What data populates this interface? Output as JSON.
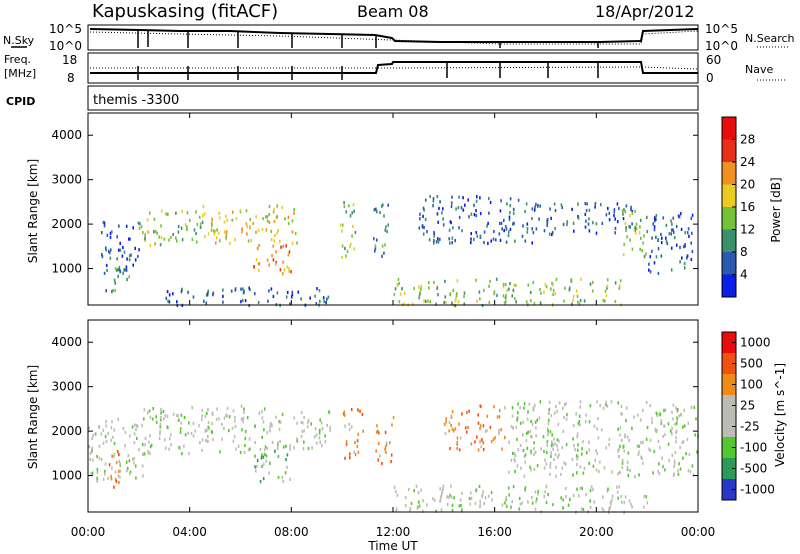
{
  "header": {
    "station": "Kapuskasing (fitACF)",
    "beam": "Beam 08",
    "date": "18/Apr/2012"
  },
  "noise_panel": {
    "left_label": "N.Sky",
    "left_ticks": [
      "10^5",
      "10^0"
    ],
    "right_ticks": [
      "10^5",
      "10^0"
    ],
    "right_label": "N.Search"
  },
  "freq_panel": {
    "left_label_1": "Freq.",
    "left_label_2": "[MHz]",
    "left_ticks": [
      "18",
      "8"
    ],
    "right_ticks": [
      "60",
      "0"
    ],
    "right_label": "Nave"
  },
  "cpid_panel": {
    "label": "CPID",
    "program": "themis -3300"
  },
  "time_axis": {
    "xlabel": "Time UT",
    "ticks": [
      "00:00",
      "04:00",
      "08:00",
      "12:00",
      "16:00",
      "20:00",
      "00:00"
    ]
  },
  "chart_data": [
    {
      "type": "heatmap",
      "title": "",
      "xlabel": "Time UT",
      "ylabel": "Slant Range [km]",
      "xlim": [
        0,
        24
      ],
      "ylim": [
        180,
        4500
      ],
      "yticks": [
        "1000",
        "2000",
        "3000",
        "4000"
      ],
      "colorbar_label": "Power [dB]",
      "colorbar_ticks": [
        "4",
        "8",
        "12",
        "16",
        "20",
        "24",
        "28"
      ],
      "colorbar_colors": [
        "#0a1ee8",
        "#2a5ab0",
        "#3a9068",
        "#74c23a",
        "#e8cc20",
        "#f09020",
        "#e83018",
        "#e80c0c"
      ],
      "regions": [
        {
          "t": [
            0.5,
            2.0
          ],
          "r": [
            900,
            2150
          ],
          "c": 1
        },
        {
          "t": [
            0.6,
            1.6
          ],
          "r": [
            500,
            1050
          ],
          "c": 2
        },
        {
          "t": [
            2.0,
            4.5
          ],
          "r": [
            1550,
            2350
          ],
          "c": 3
        },
        {
          "t": [
            4.5,
            8.2
          ],
          "r": [
            1600,
            2450
          ],
          "c": 4
        },
        {
          "t": [
            6.5,
            8.0
          ],
          "r": [
            900,
            1700
          ],
          "c": 5
        },
        {
          "t": [
            3.0,
            9.5
          ],
          "r": [
            200,
            600
          ],
          "c": 1
        },
        {
          "t": [
            9.9,
            10.5
          ],
          "r": [
            1200,
            2600
          ],
          "c": 3
        },
        {
          "t": [
            11.2,
            11.9
          ],
          "r": [
            1300,
            2500
          ],
          "c": 2
        },
        {
          "t": [
            12.0,
            21.0
          ],
          "r": [
            200,
            800
          ],
          "c": 3
        },
        {
          "t": [
            13.0,
            17.5
          ],
          "r": [
            1600,
            2700
          ],
          "c": 1
        },
        {
          "t": [
            17.5,
            21.5
          ],
          "r": [
            1800,
            2500
          ],
          "c": 1
        },
        {
          "t": [
            21.0,
            22.0
          ],
          "r": [
            1200,
            2400
          ],
          "c": 3
        },
        {
          "t": [
            22.0,
            23.8
          ],
          "r": [
            900,
            2300
          ],
          "c": 1
        }
      ]
    },
    {
      "type": "heatmap",
      "title": "",
      "xlabel": "Time UT",
      "ylabel": "Slant Range [km]",
      "xlim": [
        0,
        24
      ],
      "ylim": [
        180,
        4500
      ],
      "yticks": [
        "1000",
        "2000",
        "3000",
        "4000"
      ],
      "colorbar_label": "Velocity [m s^-1]",
      "colorbar_ticks": [
        "1000",
        "500",
        "100",
        "25",
        "-25",
        "-100",
        "-500",
        "-1000"
      ],
      "colorbar_colors": [
        "#2838c8",
        "#2e9a58",
        "#52c82e",
        "#bcbcb4",
        "#bcbcb4",
        "#f08a18",
        "#f05010",
        "#e80c0c"
      ],
      "regions": [
        {
          "t": [
            0.0,
            2.2
          ],
          "r": [
            900,
            2300
          ],
          "c": 3
        },
        {
          "t": [
            0.8,
            1.4
          ],
          "r": [
            700,
            1600
          ],
          "c": 5
        },
        {
          "t": [
            2.0,
            7.0
          ],
          "r": [
            1500,
            2600
          ],
          "c": 3
        },
        {
          "t": [
            6.5,
            8.0
          ],
          "r": [
            900,
            1700
          ],
          "c": 2
        },
        {
          "t": [
            7.0,
            9.5
          ],
          "r": [
            1600,
            2500
          ],
          "c": 3
        },
        {
          "t": [
            10.0,
            10.8
          ],
          "r": [
            1400,
            2600
          ],
          "c": 5
        },
        {
          "t": [
            11.3,
            12.0
          ],
          "r": [
            1300,
            2400
          ],
          "c": 5
        },
        {
          "t": [
            12.0,
            22.0
          ],
          "r": [
            200,
            800
          ],
          "c": 3
        },
        {
          "t": [
            14.0,
            16.5
          ],
          "r": [
            1600,
            2600
          ],
          "c": 5
        },
        {
          "t": [
            16.5,
            24.0
          ],
          "r": [
            1000,
            2700
          ],
          "c": 3
        }
      ]
    }
  ]
}
